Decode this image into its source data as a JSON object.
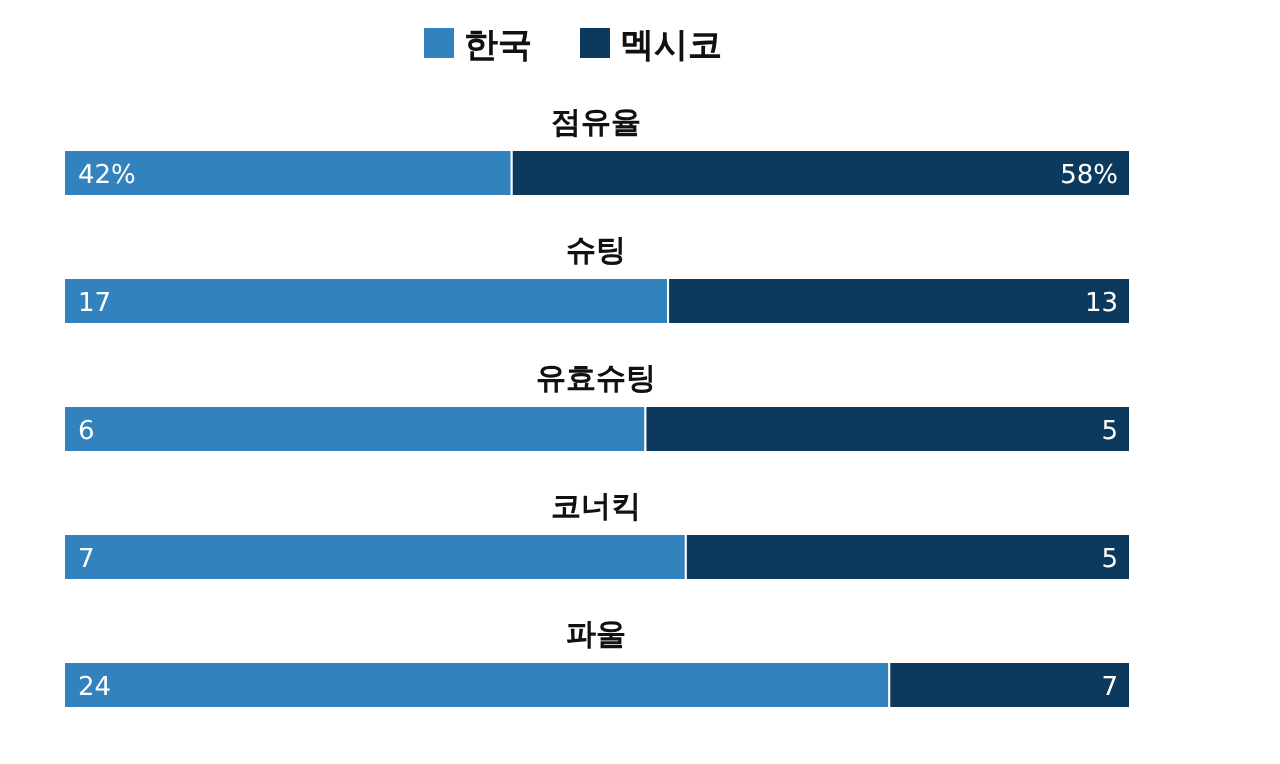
{
  "chart_data": [
    {
      "type": "bar",
      "orientation": "horizontal",
      "stacked": true,
      "legend": "top",
      "title": "점유율",
      "categories": [
        null
      ],
      "xlim": [
        0,
        100
      ],
      "tick_labels": false,
      "series": [
        {
          "name": "한국",
          "color": "#3182bd",
          "values": [
            42
          ],
          "value_labels": [
            "42%"
          ]
        },
        {
          "name": "멕시코",
          "color": "#0b3a5e",
          "values": [
            58
          ],
          "value_labels": [
            "58%"
          ]
        }
      ]
    },
    {
      "type": "bar",
      "orientation": "horizontal",
      "stacked": true,
      "title": "슈팅",
      "categories": [
        null
      ],
      "xlim": [
        0,
        30
      ],
      "tick_labels": false,
      "data_labels": true,
      "series": [
        {
          "color": "#3182bd",
          "values": [
            17
          ]
        },
        {
          "color": "#0b3a5e",
          "values": [
            13
          ]
        }
      ]
    },
    {
      "type": "bar",
      "orientation": "horizontal",
      "stacked": true,
      "title": "유효슈팅",
      "categories": [
        null
      ],
      "xlim": [
        0,
        11
      ],
      "tick_labels": false,
      "data_labels": true,
      "series": [
        {
          "color": "#3182bd",
          "values": [
            6
          ]
        },
        {
          "color": "#0b3a5e",
          "values": [
            5
          ]
        }
      ]
    },
    {
      "type": "bar",
      "orientation": "horizontal",
      "stacked": true,
      "title": "코너킥",
      "categories": [
        null
      ],
      "xlim": [
        0,
        12
      ],
      "tick_labels": false,
      "data_labels": true,
      "series": [
        {
          "color": "#3182bd",
          "values": [
            7
          ]
        },
        {
          "color": "#0b3a5e",
          "values": [
            5
          ]
        }
      ]
    },
    {
      "type": "bar",
      "orientation": "horizontal",
      "stacked": true,
      "title": "파울",
      "categories": [
        null
      ],
      "xlim": [
        0,
        31
      ],
      "tick_labels": false,
      "data_labels": true,
      "series": [
        {
          "color": "#3182bd",
          "values": [
            24
          ]
        },
        {
          "color": "#0b3a5e",
          "values": [
            7
          ]
        }
      ]
    }
  ]
}
